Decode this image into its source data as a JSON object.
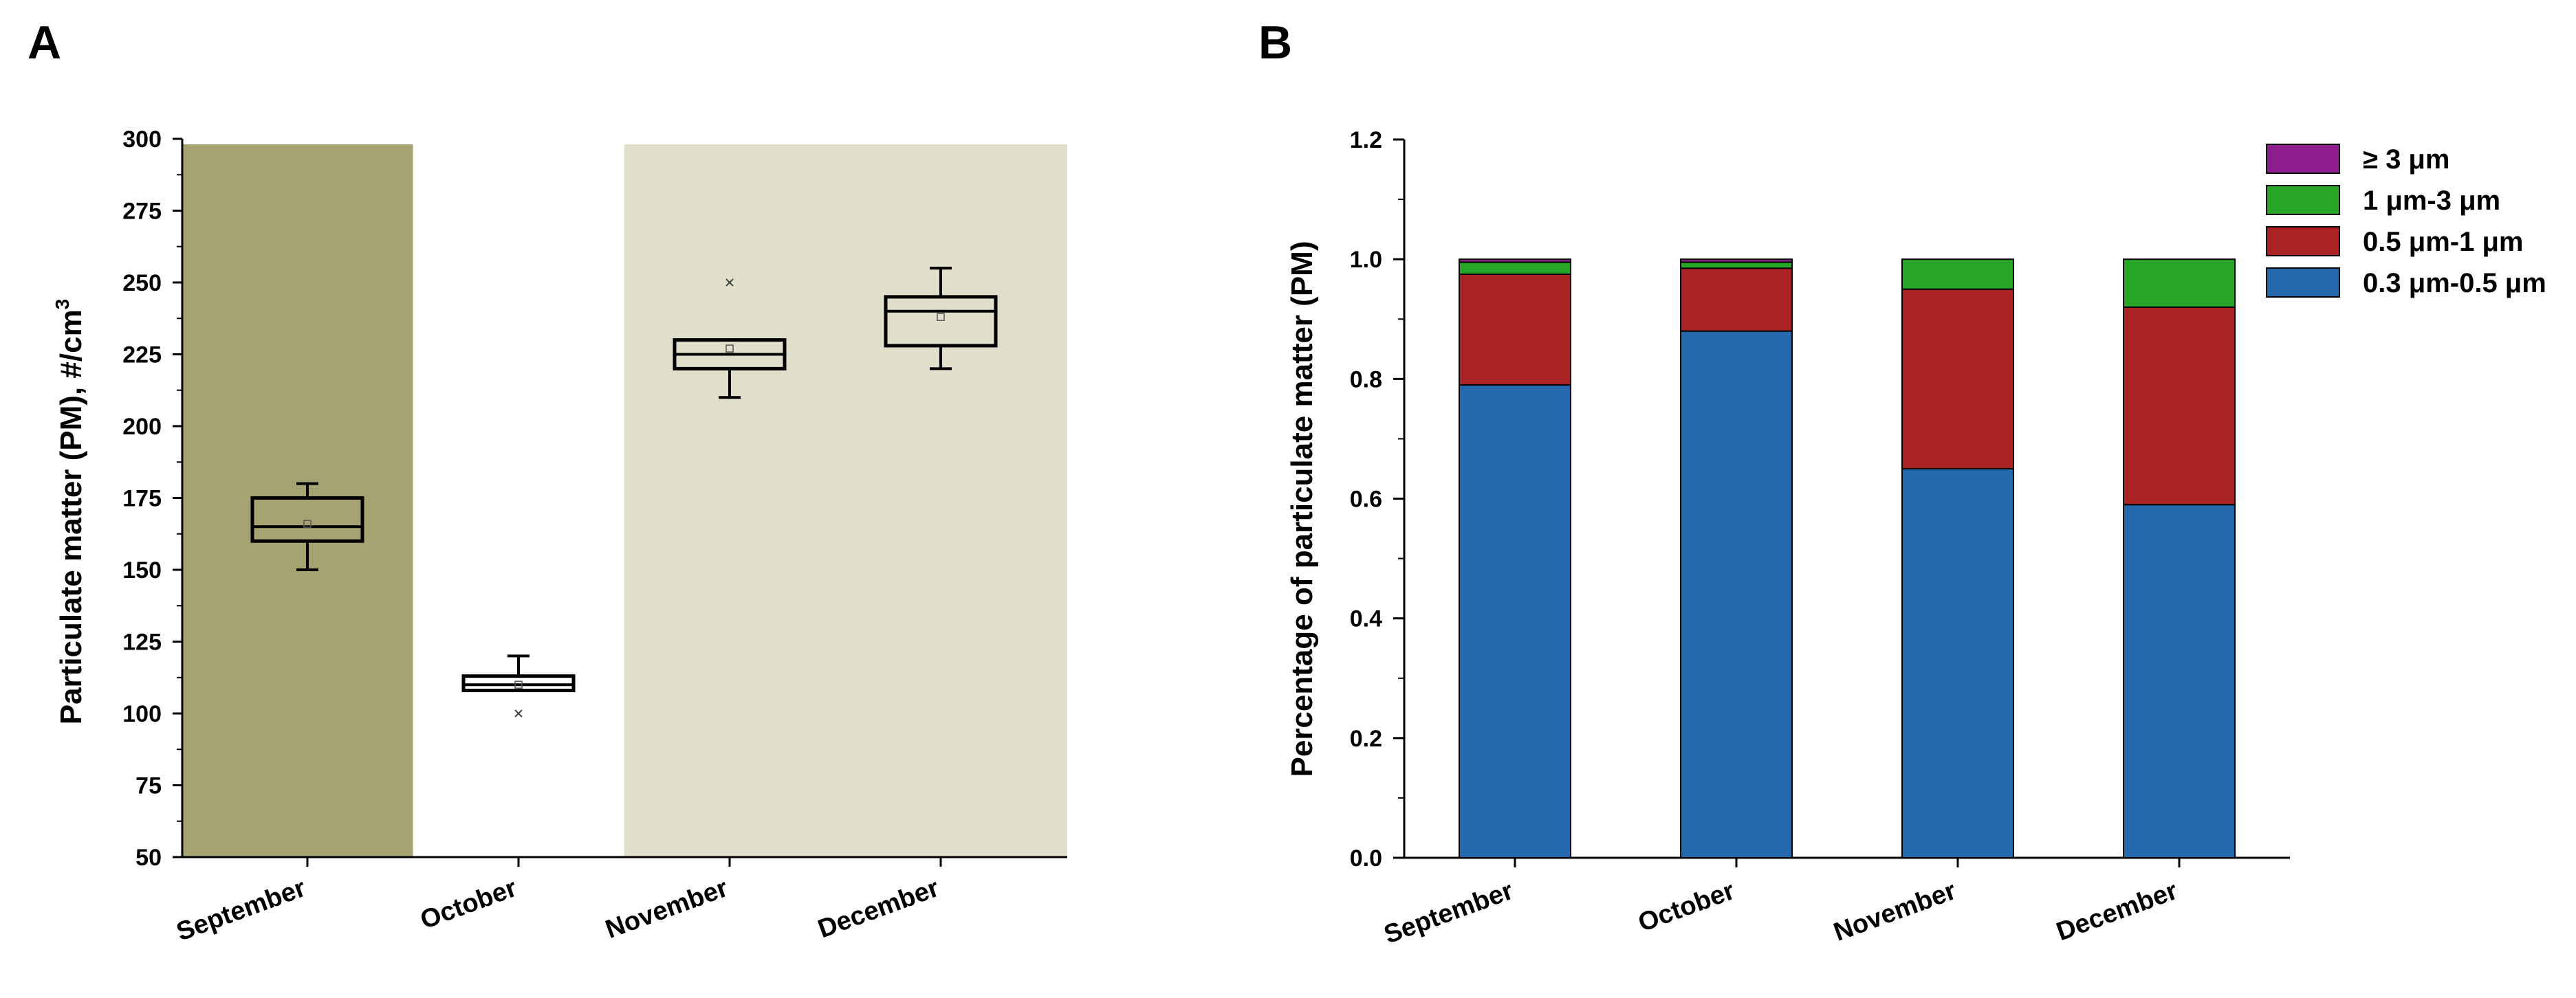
{
  "panels": {
    "a_label": "A",
    "b_label": "B"
  },
  "chart_data": [
    {
      "type": "box",
      "panel": "A",
      "ylabel": "Particulate matter (PM), #/cm",
      "ylabel_sup": "3",
      "ylim": [
        50,
        300
      ],
      "yticks": [
        50,
        75,
        100,
        125,
        150,
        175,
        200,
        225,
        250,
        275,
        300
      ],
      "categories": [
        "September",
        "October",
        "November",
        "December"
      ],
      "boxes": [
        {
          "category": "September",
          "whisker_low": 150,
          "q1": 160,
          "median": 165,
          "q3": 175,
          "whisker_high": 180,
          "mean": 166,
          "outliers": []
        },
        {
          "category": "October",
          "whisker_low": 108,
          "q1": 108,
          "median": 110,
          "q3": 113,
          "whisker_high": 120,
          "mean": 110,
          "outliers": [
            100
          ]
        },
        {
          "category": "November",
          "whisker_low": 210,
          "q1": 220,
          "median": 225,
          "q3": 230,
          "whisker_high": 230,
          "mean": 227,
          "outliers": [
            250
          ]
        },
        {
          "category": "December",
          "whisker_low": 220,
          "q1": 228,
          "median": 240,
          "q3": 245,
          "whisker_high": 255,
          "mean": 238,
          "outliers": []
        }
      ],
      "background_bands": [
        {
          "categories": [
            "September"
          ],
          "color": "#a5a371"
        },
        {
          "categories": [
            "November",
            "December"
          ],
          "color": "#dfdfcc"
        }
      ]
    },
    {
      "type": "stacked_bar",
      "panel": "B",
      "ylabel": "Percentage of particulate matter (PM)",
      "ylim": [
        0,
        1.2
      ],
      "yticks": [
        0.0,
        0.2,
        0.4,
        0.6,
        0.8,
        1.0,
        1.2
      ],
      "ytick_labels": [
        "0.0",
        "0.2",
        "0.4",
        "0.6",
        "0.8",
        "1.0",
        "1.2"
      ],
      "categories": [
        "September",
        "October",
        "November",
        "December"
      ],
      "series": [
        {
          "name": "0.3 μm-0.5 μm",
          "color": "#2568ae",
          "values": [
            0.79,
            0.88,
            0.65,
            0.59
          ]
        },
        {
          "name": "0.5 μm-1 μm",
          "color": "#aa2224",
          "values": [
            0.185,
            0.105,
            0.3,
            0.33
          ]
        },
        {
          "name": "1 μm-3 μm",
          "color": "#26a526",
          "values": [
            0.02,
            0.01,
            0.05,
            0.08
          ]
        },
        {
          "name": "≥ 3 μm",
          "color": "#8f1e8f",
          "values": [
            0.005,
            0.005,
            0.0,
            0.0
          ]
        }
      ],
      "legend_order": [
        "≥ 3 μm",
        "1 μm-3 μm",
        "0.5 μm-1 μm",
        "0.3 μm-0.5 μm"
      ],
      "legend_position": "top-right"
    }
  ]
}
